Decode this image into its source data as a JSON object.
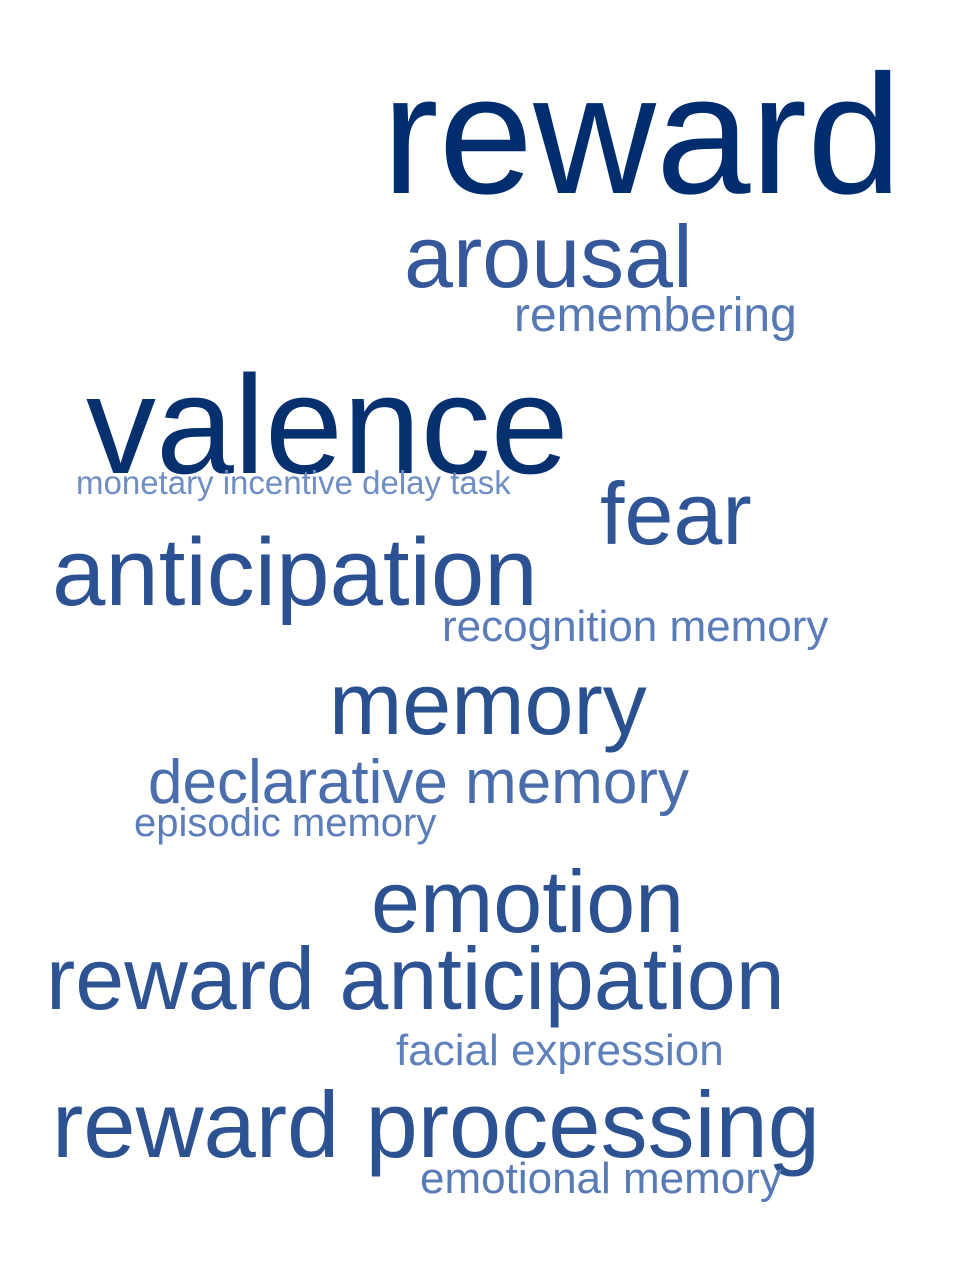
{
  "word_cloud": {
    "words": [
      {
        "key": "reward",
        "text": "reward",
        "color": "#002d6e"
      },
      {
        "key": "arousal",
        "text": "arousal",
        "color": "#34589a"
      },
      {
        "key": "remembering",
        "text": "remembering",
        "color": "#5678b3"
      },
      {
        "key": "valence",
        "text": "valence",
        "color": "#07306f"
      },
      {
        "key": "monetary_incentive_delay_task",
        "text": "monetary incentive delay task",
        "color": "#6e8ec4"
      },
      {
        "key": "fear",
        "text": "fear",
        "color": "#2f5596"
      },
      {
        "key": "anticipation",
        "text": "anticipation",
        "color": "#2c5192"
      },
      {
        "key": "recognition_memory",
        "text": "recognition memory",
        "color": "#5a7cb8"
      },
      {
        "key": "memory",
        "text": "memory",
        "color": "#29508f"
      },
      {
        "key": "declarative_memory",
        "text": "declarative memory",
        "color": "#4a6dab"
      },
      {
        "key": "episodic_memory",
        "text": "episodic memory",
        "color": "#5b7db9"
      },
      {
        "key": "emotion",
        "text": "emotion",
        "color": "#2c5191"
      },
      {
        "key": "reward_anticipation",
        "text": "reward anticipation",
        "color": "#2d5393"
      },
      {
        "key": "facial_expression",
        "text": "facial expression",
        "color": "#5f81bb"
      },
      {
        "key": "reward_processing",
        "text": "reward processing",
        "color": "#2c5292"
      },
      {
        "key": "emotional_memory",
        "text": "emotional memory",
        "color": "#587bb6"
      }
    ]
  }
}
